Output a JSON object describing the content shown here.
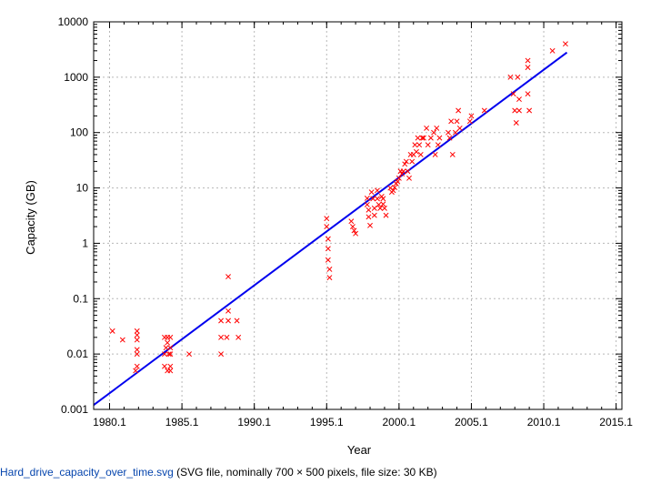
{
  "chart_data": {
    "type": "scatter",
    "title": "",
    "xlabel": "Year",
    "ylabel": "Capacity (GB)",
    "xlim": [
      1979,
      2015.5
    ],
    "ylim": [
      0.001,
      10000
    ],
    "yscale": "log",
    "grid": "dashed",
    "x_tick_labels": [
      "1980.1",
      "1985.1",
      "1990.1",
      "1995.1",
      "2000.1",
      "2005.1",
      "2010.1",
      "2015.1"
    ],
    "x_tick_values": [
      1980.1,
      1985.1,
      1990.1,
      1995.1,
      2000.1,
      2005.1,
      2010.1,
      2015.1
    ],
    "y_tick_labels": [
      "0.001",
      "0.01",
      "0.1",
      "1",
      "10",
      "100",
      "1000",
      "10000"
    ],
    "y_tick_values": [
      0.001,
      0.01,
      0.1,
      1,
      10,
      100,
      1000,
      10000
    ],
    "marker_color": "#ff0000",
    "line_color": "#0000ee",
    "trend_line": {
      "x": [
        1979,
        2011.7
      ],
      "y": [
        0.0012,
        2800
      ]
    },
    "points": [
      [
        1980.3,
        0.026
      ],
      [
        1981.0,
        0.018
      ],
      [
        1982.0,
        0.026
      ],
      [
        1982.0,
        0.022
      ],
      [
        1982.0,
        0.018
      ],
      [
        1982.0,
        0.012
      ],
      [
        1982.0,
        0.01
      ],
      [
        1982.0,
        0.006
      ],
      [
        1981.9,
        0.005
      ],
      [
        1983.9,
        0.02
      ],
      [
        1984.1,
        0.02
      ],
      [
        1984.3,
        0.02
      ],
      [
        1984.1,
        0.016
      ],
      [
        1984.0,
        0.013
      ],
      [
        1984.3,
        0.013
      ],
      [
        1983.9,
        0.01
      ],
      [
        1984.2,
        0.01
      ],
      [
        1984.3,
        0.01
      ],
      [
        1983.9,
        0.006
      ],
      [
        1984.3,
        0.006
      ],
      [
        1984.1,
        0.005
      ],
      [
        1984.3,
        0.005
      ],
      [
        1985.6,
        0.01
      ],
      [
        1987.8,
        0.04
      ],
      [
        1987.8,
        0.02
      ],
      [
        1987.8,
        0.01
      ],
      [
        1988.2,
        0.02
      ],
      [
        1988.3,
        0.06
      ],
      [
        1988.3,
        0.04
      ],
      [
        1988.3,
        0.25
      ],
      [
        1988.9,
        0.04
      ],
      [
        1989.0,
        0.02
      ],
      [
        1995.1,
        2.8
      ],
      [
        1995.1,
        2.0
      ],
      [
        1995.2,
        1.2
      ],
      [
        1995.2,
        0.8
      ],
      [
        1995.2,
        0.5
      ],
      [
        1995.3,
        0.34
      ],
      [
        1995.3,
        0.24
      ],
      [
        1996.8,
        2.5
      ],
      [
        1996.9,
        2.0
      ],
      [
        1997.0,
        1.7
      ],
      [
        1997.1,
        1.5
      ],
      [
        1997.9,
        6.5
      ],
      [
        1997.9,
        5.0
      ],
      [
        1998.0,
        4.0
      ],
      [
        1998.0,
        3.0
      ],
      [
        1998.1,
        2.1
      ],
      [
        1998.2,
        8.4
      ],
      [
        1998.3,
        6.4
      ],
      [
        1998.4,
        4.3
      ],
      [
        1998.4,
        3.2
      ],
      [
        1998.6,
        9.0
      ],
      [
        1998.6,
        6.4
      ],
      [
        1998.7,
        5.0
      ],
      [
        1998.8,
        4.3
      ],
      [
        1998.9,
        7.0
      ],
      [
        1999.0,
        6.4
      ],
      [
        1999.0,
        5.1
      ],
      [
        1999.1,
        4.3
      ],
      [
        1999.2,
        3.2
      ],
      [
        1999.5,
        10.0
      ],
      [
        1999.6,
        8.4
      ],
      [
        1999.7,
        9.0
      ],
      [
        1999.8,
        10.2
      ],
      [
        1999.9,
        12.0
      ],
      [
        2000.0,
        13.0
      ],
      [
        2000.1,
        15.0
      ],
      [
        2000.2,
        20.0
      ],
      [
        2000.3,
        18.0
      ],
      [
        2000.4,
        20.0
      ],
      [
        2000.5,
        27.0
      ],
      [
        2000.6,
        30.0
      ],
      [
        2000.7,
        20.0
      ],
      [
        2000.8,
        15.0
      ],
      [
        2000.9,
        40.0
      ],
      [
        2001.0,
        30.0
      ],
      [
        2001.1,
        40.0
      ],
      [
        2001.2,
        60.0
      ],
      [
        2001.3,
        45.0
      ],
      [
        2001.4,
        80.0
      ],
      [
        2001.5,
        60.0
      ],
      [
        2001.6,
        40.0
      ],
      [
        2001.7,
        80.0
      ],
      [
        2001.8,
        80.0
      ],
      [
        2002.0,
        120.0
      ],
      [
        2002.1,
        60.0
      ],
      [
        2002.3,
        80.0
      ],
      [
        2002.5,
        100.0
      ],
      [
        2002.6,
        40.0
      ],
      [
        2002.7,
        120.0
      ],
      [
        2002.8,
        60.0
      ],
      [
        2002.9,
        80.0
      ],
      [
        2003.5,
        100.0
      ],
      [
        2003.6,
        80.0
      ],
      [
        2003.7,
        160.0
      ],
      [
        2003.8,
        40.0
      ],
      [
        2004.0,
        100.0
      ],
      [
        2004.1,
        160.0
      ],
      [
        2004.2,
        250.0
      ],
      [
        2004.3,
        120.0
      ],
      [
        2005.0,
        160.0
      ],
      [
        2005.1,
        200.0
      ],
      [
        2006.0,
        250.0
      ],
      [
        2007.8,
        1000.0
      ],
      [
        2008.0,
        500.0
      ],
      [
        2008.1,
        250.0
      ],
      [
        2008.3,
        1000.0
      ],
      [
        2008.4,
        400.0
      ],
      [
        2008.2,
        150.0
      ],
      [
        2008.4,
        250.0
      ],
      [
        2009.0,
        1500.0
      ],
      [
        2009.0,
        2000.0
      ],
      [
        2009.0,
        500.0
      ],
      [
        2009.1,
        250.0
      ],
      [
        2010.7,
        3000.0
      ],
      [
        2011.6,
        4000.0
      ]
    ]
  },
  "caption": {
    "link_text": "Hard_drive_capacity_over_time.svg",
    "info_text": " (SVG file, nominally 700 × 500 pixels, file size: 30 KB)"
  }
}
